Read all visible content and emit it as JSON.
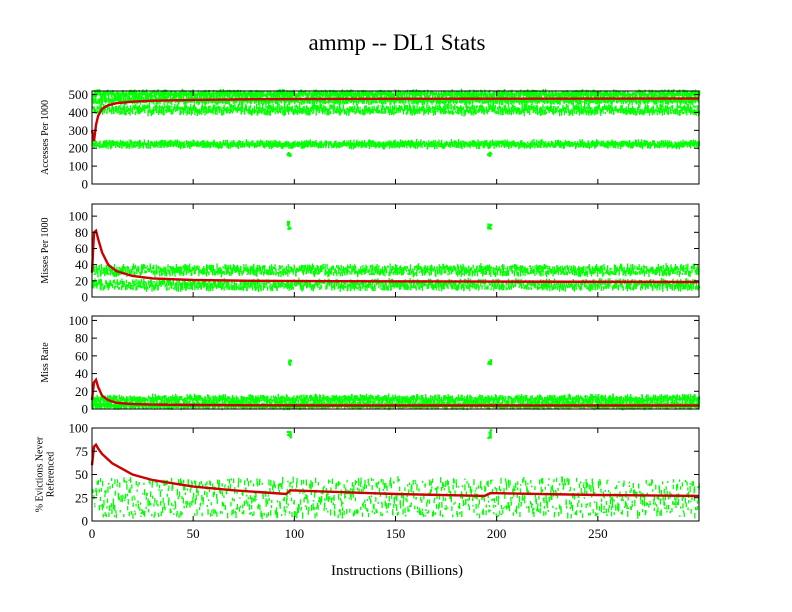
{
  "chart_data": {
    "type": "scatter",
    "title": "ammp -- DL1  Stats",
    "xlabel": "Instructions (Billions)",
    "xlim": [
      0,
      300
    ],
    "xticks": [
      0,
      50,
      100,
      150,
      200,
      250
    ],
    "colors": {
      "samples": "#00ff00",
      "average": "#cc0000",
      "frame": "#000000"
    },
    "panels": [
      {
        "id": "accesses",
        "ylabel": [
          "Accesses Per 1000"
        ],
        "ylim": [
          0,
          520
        ],
        "yticks": [
          0,
          100,
          200,
          300,
          400,
          500
        ],
        "series": [
          {
            "name": "samples",
            "bands": [
              [
                490,
                515
              ],
              [
                455,
                480
              ],
              [
                395,
                435
              ],
              [
                210,
                235
              ]
            ],
            "spikes_at": [
              97,
              196
            ],
            "spike_value": 175
          },
          {
            "name": "cumulative average",
            "x": [
              0,
              1,
              2,
              3,
              5,
              8,
              12,
              20,
              30,
              50,
              80,
              120,
              200,
              300
            ],
            "y": [
              300,
              240,
              330,
              380,
              420,
              440,
              452,
              460,
              466,
              470,
              474,
              476,
              477,
              478
            ]
          }
        ]
      },
      {
        "id": "misses",
        "ylabel": [
          "Misses Per 1000"
        ],
        "ylim": [
          0,
          115
        ],
        "yticks": [
          0,
          20,
          40,
          60,
          80,
          100
        ],
        "series": [
          {
            "name": "samples",
            "bands": [
              [
                10,
                20
              ],
              [
                28,
                38
              ]
            ],
            "spikes_at": [
              97,
              196
            ],
            "spike_value": 92
          },
          {
            "name": "cumulative average",
            "x": [
              0,
              1,
              2,
              3,
              5,
              8,
              12,
              20,
              30,
              50,
              80,
              120,
              200,
              300
            ],
            "y": [
              30,
              80,
              82,
              72,
              55,
              40,
              32,
              26,
              23,
              21,
              20,
              19.5,
              19,
              18.5
            ]
          }
        ]
      },
      {
        "id": "missrate",
        "ylabel": [
          "Miss Rate"
        ],
        "ylim": [
          0,
          105
        ],
        "yticks": [
          0,
          20,
          40,
          60,
          80,
          100
        ],
        "series": [
          {
            "name": "samples",
            "bands": [
              [
                2,
                6
              ],
              [
                8,
                14
              ]
            ],
            "spikes_at": [
              97,
              196
            ],
            "spike_value": 55
          },
          {
            "name": "cumulative average",
            "x": [
              0,
              1,
              2,
              3,
              5,
              8,
              12,
              20,
              30,
              50,
              80,
              120,
              200,
              300
            ],
            "y": [
              10,
              30,
              33,
              25,
              15,
              10,
              7,
              5.5,
              5,
              4.5,
              4.2,
              4,
              4,
              4
            ]
          }
        ]
      },
      {
        "id": "evictions",
        "ylabel": [
          "% Evictions Never",
          "Referenced"
        ],
        "ylim": [
          0,
          100
        ],
        "yticks": [
          0,
          25,
          50,
          75,
          100
        ],
        "series": [
          {
            "name": "samples",
            "bands": [
              [
                5,
                45
              ]
            ],
            "spikes_at": [
              97,
              196
            ],
            "spike_value": 97
          },
          {
            "name": "cumulative average",
            "x": [
              0,
              1,
              2,
              3,
              5,
              10,
              20,
              30,
              50,
              70,
              96,
              98,
              150,
              194,
              197,
              250,
              300
            ],
            "y": [
              60,
              80,
              82,
              78,
              72,
              62,
              50,
              44,
              37,
              33,
              29,
              33,
              29,
              27,
              30,
              28,
              27
            ]
          }
        ]
      }
    ]
  }
}
